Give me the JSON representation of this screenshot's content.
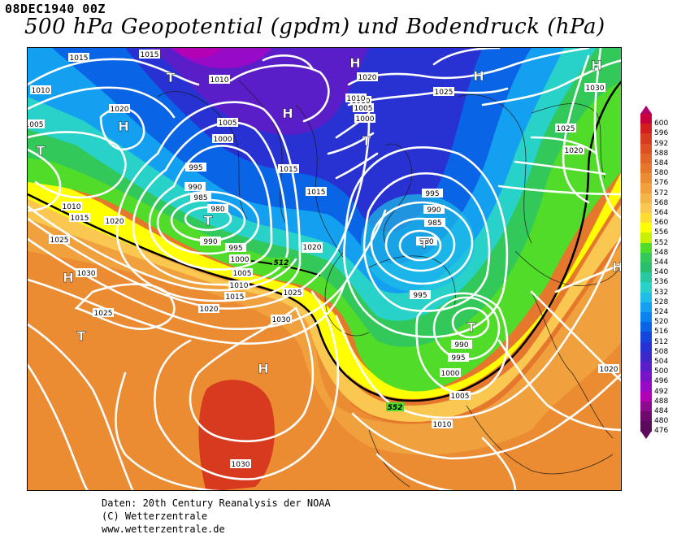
{
  "header": {
    "date": "08DEC1940 00Z",
    "title": "500 hPa Geopotential (gpdm) und Bodendruck (hPa)"
  },
  "credits": {
    "line1": "Daten: 20th Century Reanalysis der NOAA",
    "line2": "(C) Wetterzentrale",
    "line3": "www.wetterzentrale.de"
  },
  "legend": {
    "levels": [
      "600",
      "596",
      "592",
      "588",
      "584",
      "580",
      "576",
      "572",
      "568",
      "564",
      "560",
      "556",
      "552",
      "548",
      "544",
      "540",
      "536",
      "532",
      "528",
      "524",
      "520",
      "516",
      "512",
      "508",
      "504",
      "500",
      "496",
      "492",
      "488",
      "484",
      "480",
      "476"
    ],
    "colors": [
      "#c8003c",
      "#d21e1e",
      "#d73a1e",
      "#dc5023",
      "#e16428",
      "#e6782d",
      "#eb8c32",
      "#f0a03c",
      "#f5b446",
      "#fac850",
      "#ffdc32",
      "#ffff00",
      "#c8f000",
      "#50dc28",
      "#32c85a",
      "#28be6e",
      "#28c8a0",
      "#28d2c8",
      "#1ebee6",
      "#14a0f0",
      "#0a82f0",
      "#0a64e6",
      "#1446dc",
      "#2832d2",
      "#3c28c8",
      "#5a1ec8",
      "#7814c8",
      "#960ac8",
      "#b400b4",
      "#8c0a8c",
      "#6e0a6e",
      "#5a0a5a"
    ]
  },
  "map": {
    "contour_labels": [
      "1015",
      "1010",
      "1015",
      "1020",
      "1005",
      "1010",
      "1010",
      "1020",
      "1020",
      "1025",
      "1015",
      "1010",
      "1005",
      "1000",
      "995",
      "990",
      "985",
      "980",
      "990",
      "995",
      "1000",
      "1005",
      "1010",
      "1015",
      "1015",
      "1020",
      "1025",
      "1030",
      "1030",
      "1025",
      "1020",
      "1015",
      "1020",
      "1025",
      "1030",
      "1010",
      "1005",
      "1000",
      "995",
      "990",
      "985",
      "980",
      "995",
      "990",
      "995",
      "1000",
      "1005",
      "1010",
      "1020",
      "1025",
      "1020",
      "1030",
      "1020",
      "1025"
    ],
    "height_labels": [
      "512",
      "552"
    ],
    "pressure_centers": [
      "T",
      "H",
      "H",
      "T",
      "H",
      "H",
      "T",
      "T",
      "H",
      "T",
      "H",
      "T",
      "T",
      "H",
      "H",
      "H"
    ]
  }
}
